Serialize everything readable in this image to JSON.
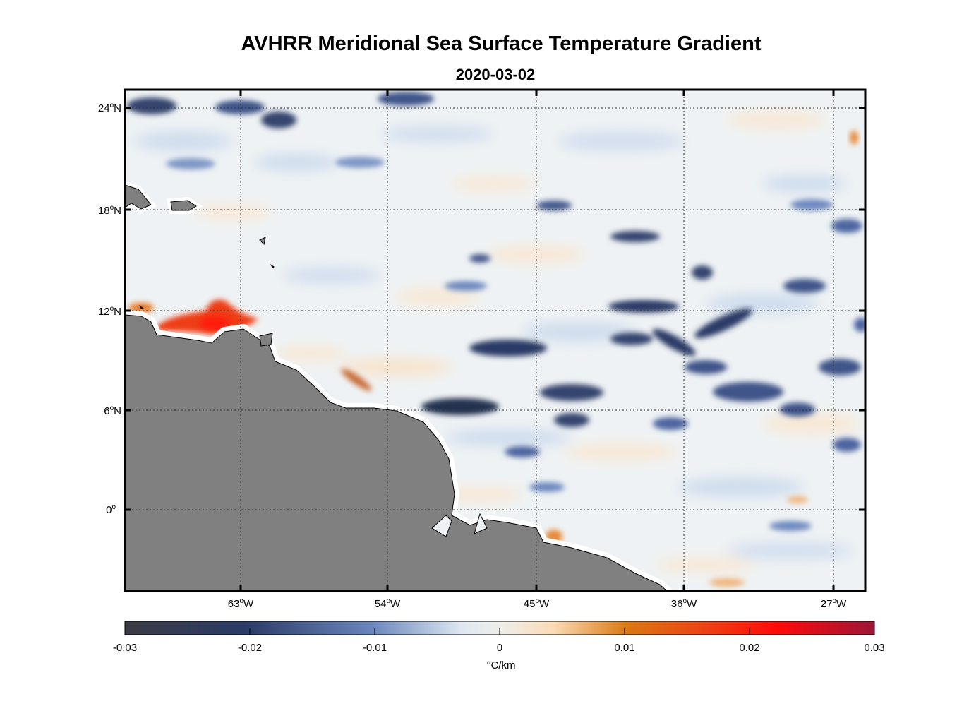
{
  "title": "AVHRR Meridional Sea Surface Temperature Gradient",
  "subtitle": "2020-03-02",
  "lat_ticks": [
    {
      "deg": "24",
      "hemi": "N"
    },
    {
      "deg": "18",
      "hemi": "N"
    },
    {
      "deg": "12",
      "hemi": "N"
    },
    {
      "deg": "6",
      "hemi": "N"
    },
    {
      "deg": "0",
      "hemi": ""
    }
  ],
  "lon_ticks": [
    {
      "deg": "63",
      "hemi": "W"
    },
    {
      "deg": "54",
      "hemi": "W"
    },
    {
      "deg": "45",
      "hemi": "W"
    },
    {
      "deg": "36",
      "hemi": "W"
    },
    {
      "deg": "27",
      "hemi": "W"
    }
  ],
  "colorbar": {
    "ticks": [
      "-0.03",
      "-0.02",
      "-0.01",
      "0",
      "0.01",
      "0.02",
      "0.03"
    ],
    "unit_symbol": "°C/km",
    "colors": [
      "#3b3b44",
      "#2b3b66",
      "#6a86bd",
      "#dfe8f2",
      "#f2ead8",
      "#fbdcb8",
      "#d97812",
      "#ee3e13",
      "#ff0a0a",
      "#9e1538"
    ]
  },
  "land_color": "#808080"
}
